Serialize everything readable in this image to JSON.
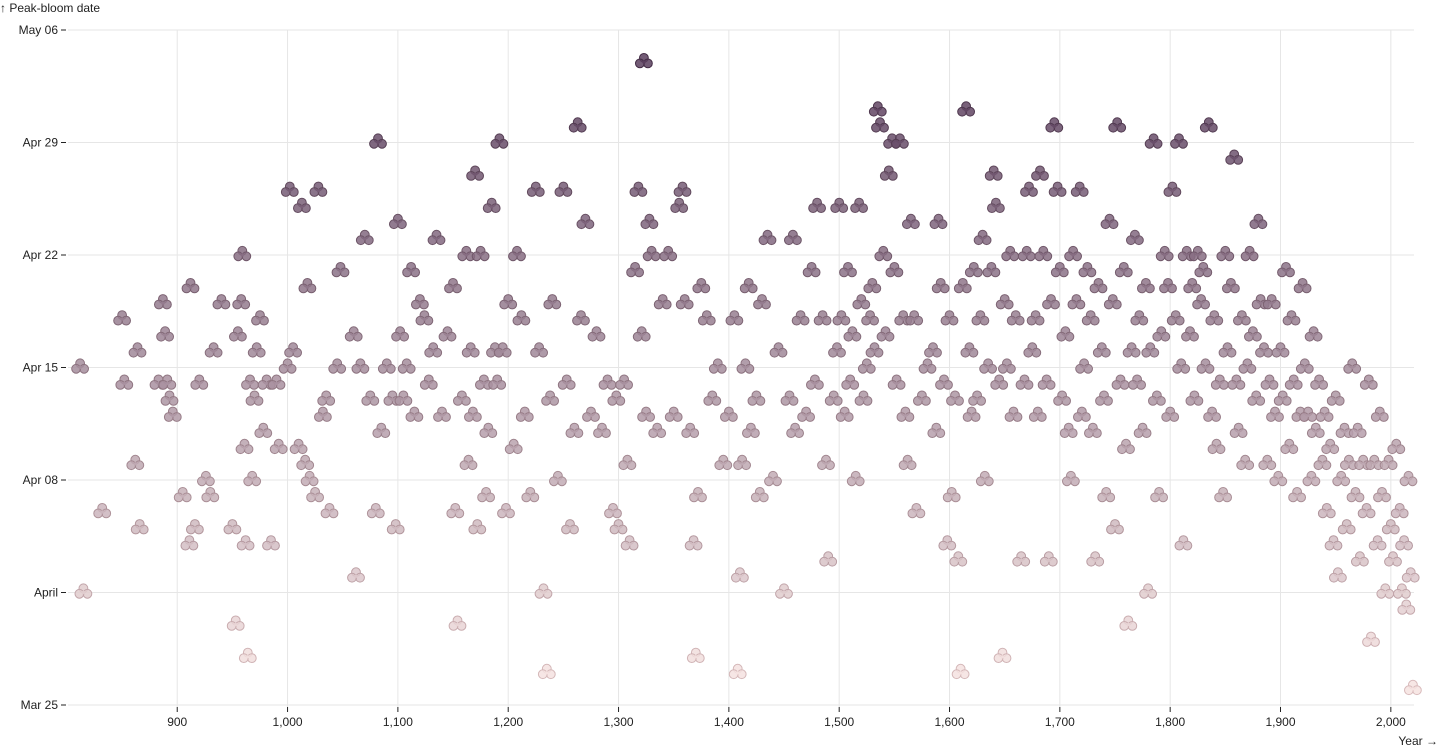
{
  "chart_data": {
    "type": "scatter",
    "title": "",
    "xlabel": "Year →",
    "ylabel": "↑ Peak-bloom date",
    "xlim": [
      801,
      2021
    ],
    "ylim": [
      "Mar 25",
      "May 06"
    ],
    "grid": true,
    "legend": "none",
    "x_ticks": [
      "900",
      "1,000",
      "1,100",
      "1,200",
      "1,300",
      "1,400",
      "1,500",
      "1,600",
      "1,700",
      "1,800",
      "1,900",
      "2,000"
    ],
    "y_ticks": [
      "May 06",
      "Apr 29",
      "Apr 22",
      "Apr 15",
      "Apr 08",
      "April",
      "Mar 25"
    ],
    "marker": "cherry-blossom",
    "color_scale": [
      "#f6e3e1",
      "#5b3f5e"
    ],
    "points": [
      [
        812,
        "Apr 15"
      ],
      [
        815,
        "Apr 01"
      ],
      [
        832,
        "Apr 06"
      ],
      [
        850,
        "Apr 18"
      ],
      [
        852,
        "Apr 14"
      ],
      [
        862,
        "Apr 09"
      ],
      [
        864,
        "Apr 16"
      ],
      [
        866,
        "Apr 05"
      ],
      [
        883,
        "Apr 14"
      ],
      [
        887,
        "Apr 19"
      ],
      [
        889,
        "Apr 17"
      ],
      [
        891,
        "Apr 14"
      ],
      [
        893,
        "Apr 13"
      ],
      [
        896,
        "Apr 12"
      ],
      [
        905,
        "Apr 07"
      ],
      [
        911,
        "Apr 04"
      ],
      [
        912,
        "Apr 20"
      ],
      [
        916,
        "Apr 05"
      ],
      [
        920,
        "Apr 14"
      ],
      [
        926,
        "Apr 08"
      ],
      [
        930,
        "Apr 07"
      ],
      [
        933,
        "Apr 16"
      ],
      [
        940,
        "Apr 19"
      ],
      [
        950,
        "Apr 05"
      ],
      [
        953,
        "Mar 30"
      ],
      [
        955,
        "Apr 17"
      ],
      [
        958,
        "Apr 19"
      ],
      [
        959,
        "Apr 22"
      ],
      [
        961,
        "Apr 10"
      ],
      [
        962,
        "Apr 04"
      ],
      [
        964,
        "Mar 28"
      ],
      [
        966,
        "Apr 14"
      ],
      [
        968,
        "Apr 08"
      ],
      [
        970,
        "Apr 13"
      ],
      [
        972,
        "Apr 16"
      ],
      [
        975,
        "Apr 18"
      ],
      [
        978,
        "Apr 11"
      ],
      [
        981,
        "Apr 14"
      ],
      [
        985,
        "Apr 04"
      ],
      [
        990,
        "Apr 14"
      ],
      [
        992,
        "Apr 10"
      ],
      [
        1000,
        "Apr 15"
      ],
      [
        1002,
        "Apr 26"
      ],
      [
        1005,
        "Apr 16"
      ],
      [
        1010,
        "Apr 10"
      ],
      [
        1013,
        "Apr 25"
      ],
      [
        1016,
        "Apr 09"
      ],
      [
        1018,
        "Apr 20"
      ],
      [
        1020,
        "Apr 08"
      ],
      [
        1025,
        "Apr 07"
      ],
      [
        1028,
        "Apr 26"
      ],
      [
        1032,
        "Apr 12"
      ],
      [
        1035,
        "Apr 13"
      ],
      [
        1038,
        "Apr 06"
      ],
      [
        1045,
        "Apr 15"
      ],
      [
        1048,
        "Apr 21"
      ],
      [
        1060,
        "Apr 17"
      ],
      [
        1062,
        "Apr 02"
      ],
      [
        1066,
        "Apr 15"
      ],
      [
        1070,
        "Apr 23"
      ],
      [
        1075,
        "Apr 13"
      ],
      [
        1080,
        "Apr 06"
      ],
      [
        1082,
        "Apr 29"
      ],
      [
        1085,
        "Apr 11"
      ],
      [
        1090,
        "Apr 15"
      ],
      [
        1095,
        "Apr 13"
      ],
      [
        1098,
        "Apr 05"
      ],
      [
        1100,
        "Apr 24"
      ],
      [
        1102,
        "Apr 17"
      ],
      [
        1105,
        "Apr 13"
      ],
      [
        1108,
        "Apr 15"
      ],
      [
        1112,
        "Apr 21"
      ],
      [
        1115,
        "Apr 12"
      ],
      [
        1120,
        "Apr 19"
      ],
      [
        1124,
        "Apr 18"
      ],
      [
        1128,
        "Apr 14"
      ],
      [
        1132,
        "Apr 16"
      ],
      [
        1135,
        "Apr 23"
      ],
      [
        1140,
        "Apr 12"
      ],
      [
        1145,
        "Apr 17"
      ],
      [
        1150,
        "Apr 20"
      ],
      [
        1152,
        "Apr 06"
      ],
      [
        1154,
        "Mar 30"
      ],
      [
        1158,
        "Apr 13"
      ],
      [
        1162,
        "Apr 22"
      ],
      [
        1164,
        "Apr 09"
      ],
      [
        1166,
        "Apr 16"
      ],
      [
        1168,
        "Apr 12"
      ],
      [
        1170,
        "Apr 27"
      ],
      [
        1172,
        "Apr 05"
      ],
      [
        1175,
        "Apr 22"
      ],
      [
        1178,
        "Apr 14"
      ],
      [
        1180,
        "Apr 07"
      ],
      [
        1182,
        "Apr 11"
      ],
      [
        1185,
        "Apr 25"
      ],
      [
        1188,
        "Apr 16"
      ],
      [
        1190,
        "Apr 14"
      ],
      [
        1192,
        "Apr 29"
      ],
      [
        1195,
        "Apr 16"
      ],
      [
        1198,
        "Apr 06"
      ],
      [
        1200,
        "Apr 19"
      ],
      [
        1205,
        "Apr 10"
      ],
      [
        1208,
        "Apr 22"
      ],
      [
        1212,
        "Apr 18"
      ],
      [
        1215,
        "Apr 12"
      ],
      [
        1220,
        "Apr 07"
      ],
      [
        1225,
        "Apr 26"
      ],
      [
        1228,
        "Apr 16"
      ],
      [
        1232,
        "Apr 01"
      ],
      [
        1235,
        "Mar 27"
      ],
      [
        1238,
        "Apr 13"
      ],
      [
        1240,
        "Apr 19"
      ],
      [
        1245,
        "Apr 08"
      ],
      [
        1250,
        "Apr 26"
      ],
      [
        1253,
        "Apr 14"
      ],
      [
        1256,
        "Apr 05"
      ],
      [
        1260,
        "Apr 11"
      ],
      [
        1263,
        "Apr 30"
      ],
      [
        1266,
        "Apr 18"
      ],
      [
        1270,
        "Apr 24"
      ],
      [
        1275,
        "Apr 12"
      ],
      [
        1280,
        "Apr 17"
      ],
      [
        1285,
        "Apr 11"
      ],
      [
        1290,
        "Apr 14"
      ],
      [
        1295,
        "Apr 06"
      ],
      [
        1298,
        "Apr 13"
      ],
      [
        1300,
        "Apr 05"
      ],
      [
        1305,
        "Apr 14"
      ],
      [
        1308,
        "Apr 09"
      ],
      [
        1310,
        "Apr 04"
      ],
      [
        1315,
        "Apr 21"
      ],
      [
        1318,
        "Apr 26"
      ],
      [
        1321,
        "Apr 17"
      ],
      [
        1323,
        "May 04"
      ],
      [
        1325,
        "Apr 12"
      ],
      [
        1328,
        "Apr 24"
      ],
      [
        1330,
        "Apr 22"
      ],
      [
        1335,
        "Apr 11"
      ],
      [
        1340,
        "Apr 19"
      ],
      [
        1345,
        "Apr 22"
      ],
      [
        1350,
        "Apr 12"
      ],
      [
        1355,
        "Apr 25"
      ],
      [
        1358,
        "Apr 26"
      ],
      [
        1360,
        "Apr 19"
      ],
      [
        1365,
        "Apr 11"
      ],
      [
        1368,
        "Apr 04"
      ],
      [
        1370,
        "Mar 28"
      ],
      [
        1372,
        "Apr 07"
      ],
      [
        1375,
        "Apr 20"
      ],
      [
        1380,
        "Apr 18"
      ],
      [
        1385,
        "Apr 13"
      ],
      [
        1390,
        "Apr 15"
      ],
      [
        1395,
        "Apr 09"
      ],
      [
        1400,
        "Apr 12"
      ],
      [
        1405,
        "Apr 18"
      ],
      [
        1408,
        "Mar 27"
      ],
      [
        1410,
        "Apr 02"
      ],
      [
        1412,
        "Apr 09"
      ],
      [
        1415,
        "Apr 15"
      ],
      [
        1418,
        "Apr 20"
      ],
      [
        1420,
        "Apr 11"
      ],
      [
        1425,
        "Apr 13"
      ],
      [
        1428,
        "Apr 07"
      ],
      [
        1430,
        "Apr 19"
      ],
      [
        1435,
        "Apr 23"
      ],
      [
        1440,
        "Apr 08"
      ],
      [
        1445,
        "Apr 16"
      ],
      [
        1450,
        "Apr 01"
      ],
      [
        1455,
        "Apr 13"
      ],
      [
        1458,
        "Apr 23"
      ],
      [
        1460,
        "Apr 11"
      ],
      [
        1465,
        "Apr 18"
      ],
      [
        1470,
        "Apr 12"
      ],
      [
        1475,
        "Apr 21"
      ],
      [
        1478,
        "Apr 14"
      ],
      [
        1480,
        "Apr 25"
      ],
      [
        1485,
        "Apr 18"
      ],
      [
        1488,
        "Apr 09"
      ],
      [
        1490,
        "Apr 03"
      ],
      [
        1495,
        "Apr 13"
      ],
      [
        1498,
        "Apr 16"
      ],
      [
        1500,
        "Apr 25"
      ],
      [
        1502,
        "Apr 18"
      ],
      [
        1505,
        "Apr 12"
      ],
      [
        1508,
        "Apr 21"
      ],
      [
        1510,
        "Apr 14"
      ],
      [
        1512,
        "Apr 17"
      ],
      [
        1515,
        "Apr 08"
      ],
      [
        1518,
        "Apr 25"
      ],
      [
        1520,
        "Apr 19"
      ],
      [
        1522,
        "Apr 13"
      ],
      [
        1525,
        "Apr 15"
      ],
      [
        1528,
        "Apr 18"
      ],
      [
        1530,
        "Apr 20"
      ],
      [
        1532,
        "Apr 16"
      ],
      [
        1535,
        "Apr 31"
      ],
      [
        1537,
        "Apr 30"
      ],
      [
        1540,
        "Apr 22"
      ],
      [
        1542,
        "Apr 17"
      ],
      [
        1545,
        "Apr 27"
      ],
      [
        1548,
        "Apr 29"
      ],
      [
        1550,
        "Apr 21"
      ],
      [
        1552,
        "Apr 14"
      ],
      [
        1555,
        "Apr 29"
      ],
      [
        1558,
        "Apr 18"
      ],
      [
        1560,
        "Apr 12"
      ],
      [
        1562,
        "Apr 09"
      ],
      [
        1565,
        "Apr 24"
      ],
      [
        1568,
        "Apr 18"
      ],
      [
        1570,
        "Apr 06"
      ],
      [
        1575,
        "Apr 13"
      ],
      [
        1580,
        "Apr 15"
      ],
      [
        1585,
        "Apr 16"
      ],
      [
        1588,
        "Apr 11"
      ],
      [
        1590,
        "Apr 24"
      ],
      [
        1592,
        "Apr 20"
      ],
      [
        1595,
        "Apr 14"
      ],
      [
        1598,
        "Apr 04"
      ],
      [
        1600,
        "Apr 18"
      ],
      [
        1602,
        "Apr 07"
      ],
      [
        1605,
        "Apr 13"
      ],
      [
        1608,
        "Apr 03"
      ],
      [
        1610,
        "Mar 27"
      ],
      [
        1612,
        "Apr 20"
      ],
      [
        1615,
        "Apr 31"
      ],
      [
        1618,
        "Apr 16"
      ],
      [
        1620,
        "Apr 12"
      ],
      [
        1622,
        "Apr 21"
      ],
      [
        1625,
        "Apr 13"
      ],
      [
        1628,
        "Apr 18"
      ],
      [
        1630,
        "Apr 23"
      ],
      [
        1632,
        "Apr 08"
      ],
      [
        1635,
        "Apr 15"
      ],
      [
        1638,
        "Apr 21"
      ],
      [
        1640,
        "Apr 27"
      ],
      [
        1642,
        "Apr 25"
      ],
      [
        1645,
        "Apr 14"
      ],
      [
        1648,
        "Mar 28"
      ],
      [
        1650,
        "Apr 19"
      ],
      [
        1652,
        "Apr 15"
      ],
      [
        1655,
        "Apr 22"
      ],
      [
        1658,
        "Apr 12"
      ],
      [
        1660,
        "Apr 18"
      ],
      [
        1665,
        "Apr 03"
      ],
      [
        1668,
        "Apr 14"
      ],
      [
        1670,
        "Apr 22"
      ],
      [
        1672,
        "Apr 26"
      ],
      [
        1675,
        "Apr 16"
      ],
      [
        1678,
        "Apr 18"
      ],
      [
        1680,
        "Apr 12"
      ],
      [
        1682,
        "Apr 27"
      ],
      [
        1685,
        "Apr 22"
      ],
      [
        1688,
        "Apr 14"
      ],
      [
        1690,
        "Apr 03"
      ],
      [
        1692,
        "Apr 19"
      ],
      [
        1695,
        "Apr 30"
      ],
      [
        1698,
        "Apr 26"
      ],
      [
        1700,
        "Apr 21"
      ],
      [
        1702,
        "Apr 13"
      ],
      [
        1705,
        "Apr 17"
      ],
      [
        1708,
        "Apr 11"
      ],
      [
        1710,
        "Apr 08"
      ],
      [
        1712,
        "Apr 22"
      ],
      [
        1715,
        "Apr 19"
      ],
      [
        1718,
        "Apr 26"
      ],
      [
        1720,
        "Apr 12"
      ],
      [
        1722,
        "Apr 15"
      ],
      [
        1725,
        "Apr 21"
      ],
      [
        1728,
        "Apr 18"
      ],
      [
        1730,
        "Apr 11"
      ],
      [
        1732,
        "Apr 03"
      ],
      [
        1735,
        "Apr 20"
      ],
      [
        1738,
        "Apr 16"
      ],
      [
        1740,
        "Apr 13"
      ],
      [
        1742,
        "Apr 07"
      ],
      [
        1745,
        "Apr 24"
      ],
      [
        1748,
        "Apr 19"
      ],
      [
        1750,
        "Apr 05"
      ],
      [
        1752,
        "Apr 30"
      ],
      [
        1755,
        "Apr 14"
      ],
      [
        1758,
        "Apr 21"
      ],
      [
        1760,
        "Apr 10"
      ],
      [
        1762,
        "Mar 30"
      ],
      [
        1765,
        "Apr 16"
      ],
      [
        1768,
        "Apr 23"
      ],
      [
        1770,
        "Apr 14"
      ],
      [
        1772,
        "Apr 18"
      ],
      [
        1775,
        "Apr 11"
      ],
      [
        1778,
        "Apr 20"
      ],
      [
        1780,
        "Apr 01"
      ],
      [
        1782,
        "Apr 16"
      ],
      [
        1785,
        "Apr 29"
      ],
      [
        1788,
        "Apr 13"
      ],
      [
        1790,
        "Apr 07"
      ],
      [
        1792,
        "Apr 17"
      ],
      [
        1795,
        "Apr 22"
      ],
      [
        1798,
        "Apr 20"
      ],
      [
        1800,
        "Apr 12"
      ],
      [
        1802,
        "Apr 26"
      ],
      [
        1805,
        "Apr 18"
      ],
      [
        1808,
        "Apr 29"
      ],
      [
        1810,
        "Apr 15"
      ],
      [
        1812,
        "Apr 04"
      ],
      [
        1815,
        "Apr 22"
      ],
      [
        1818,
        "Apr 17"
      ],
      [
        1820,
        "Apr 20"
      ],
      [
        1822,
        "Apr 13"
      ],
      [
        1825,
        "Apr 22"
      ],
      [
        1828,
        "Apr 19"
      ],
      [
        1830,
        "Apr 21"
      ],
      [
        1832,
        "Apr 15"
      ],
      [
        1835,
        "Apr 30"
      ],
      [
        1838,
        "Apr 12"
      ],
      [
        1840,
        "Apr 18"
      ],
      [
        1842,
        "Apr 10"
      ],
      [
        1845,
        "Apr 14"
      ],
      [
        1848,
        "Apr 07"
      ],
      [
        1850,
        "Apr 22"
      ],
      [
        1852,
        "Apr 16"
      ],
      [
        1855,
        "Apr 20"
      ],
      [
        1858,
        "Apr 28"
      ],
      [
        1860,
        "Apr 14"
      ],
      [
        1862,
        "Apr 11"
      ],
      [
        1865,
        "Apr 18"
      ],
      [
        1868,
        "Apr 09"
      ],
      [
        1870,
        "Apr 15"
      ],
      [
        1872,
        "Apr 22"
      ],
      [
        1875,
        "Apr 17"
      ],
      [
        1878,
        "Apr 13"
      ],
      [
        1880,
        "Apr 24"
      ],
      [
        1882,
        "Apr 19"
      ],
      [
        1885,
        "Apr 16"
      ],
      [
        1888,
        "Apr 09"
      ],
      [
        1890,
        "Apr 14"
      ],
      [
        1892,
        "Apr 19"
      ],
      [
        1895,
        "Apr 12"
      ],
      [
        1898,
        "Apr 08"
      ],
      [
        1900,
        "Apr 16"
      ],
      [
        1902,
        "Apr 13"
      ],
      [
        1905,
        "Apr 21"
      ],
      [
        1908,
        "Apr 10"
      ],
      [
        1910,
        "Apr 18"
      ],
      [
        1912,
        "Apr 14"
      ],
      [
        1915,
        "Apr 07"
      ],
      [
        1918,
        "Apr 12"
      ],
      [
        1920,
        "Apr 20"
      ],
      [
        1922,
        "Apr 15"
      ],
      [
        1925,
        "Apr 12"
      ],
      [
        1928,
        "Apr 08"
      ],
      [
        1930,
        "Apr 17"
      ],
      [
        1932,
        "Apr 11"
      ],
      [
        1935,
        "Apr 14"
      ],
      [
        1938,
        "Apr 09"
      ],
      [
        1940,
        "Apr 12"
      ],
      [
        1942,
        "Apr 06"
      ],
      [
        1945,
        "Apr 10"
      ],
      [
        1948,
        "Apr 04"
      ],
      [
        1950,
        "Apr 13"
      ],
      [
        1952,
        "Apr 02"
      ],
      [
        1955,
        "Apr 08"
      ],
      [
        1958,
        "Apr 11"
      ],
      [
        1960,
        "Apr 05"
      ],
      [
        1962,
        "Apr 09"
      ],
      [
        1965,
        "Apr 15"
      ],
      [
        1968,
        "Apr 07"
      ],
      [
        1970,
        "Apr 11"
      ],
      [
        1972,
        "Apr 03"
      ],
      [
        1975,
        "Apr 09"
      ],
      [
        1978,
        "Apr 06"
      ],
      [
        1980,
        "Apr 14"
      ],
      [
        1982,
        "Mar 29"
      ],
      [
        1985,
        "Apr 09"
      ],
      [
        1988,
        "Apr 04"
      ],
      [
        1990,
        "Apr 12"
      ],
      [
        1992,
        "Apr 07"
      ],
      [
        1995,
        "Apr 01"
      ],
      [
        1998,
        "Apr 09"
      ],
      [
        2000,
        "Apr 05"
      ],
      [
        2002,
        "Apr 03"
      ],
      [
        2005,
        "Apr 10"
      ],
      [
        2008,
        "Apr 06"
      ],
      [
        2010,
        "Apr 01"
      ],
      [
        2012,
        "Apr 04"
      ],
      [
        2014,
        "Mar 31"
      ],
      [
        2016,
        "Apr 08"
      ],
      [
        2018,
        "Apr 02"
      ],
      [
        2020,
        "Mar 26"
      ]
    ]
  }
}
